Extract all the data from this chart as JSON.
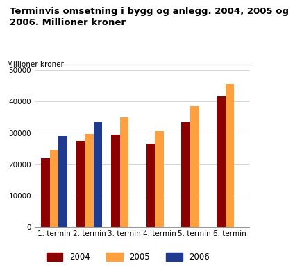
{
  "title_line1": "Terminvis omsetning i bygg og anlegg. 2004, 2005 og",
  "title_line2": "2006. Millioner kroner",
  "ylabel": "Millioner kroner",
  "categories": [
    "1. termin",
    "2. termin",
    "3. termin",
    "4. termin",
    "5. termin",
    "6. termin"
  ],
  "series": {
    "2004": [
      22000,
      27500,
      29500,
      26500,
      33500,
      41500
    ],
    "2005": [
      24500,
      29700,
      35000,
      30500,
      38500,
      45500
    ],
    "2006": [
      29000,
      33500,
      null,
      null,
      null,
      null
    ]
  },
  "colors": {
    "2004": "#8B0000",
    "2005": "#FFA040",
    "2006": "#1F3A8F"
  },
  "ylim": [
    0,
    50000
  ],
  "yticks": [
    0,
    10000,
    20000,
    30000,
    40000,
    50000
  ],
  "background_color": "#ffffff",
  "title_fontsize": 9.5,
  "ylabel_fontsize": 7.5,
  "tick_fontsize": 7.5,
  "legend_fontsize": 8.5
}
